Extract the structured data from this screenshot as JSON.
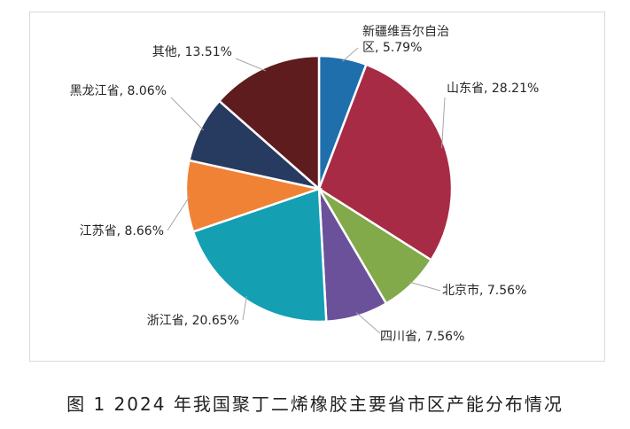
{
  "caption": "图 1  2024 年我国聚丁二烯橡胶主要省市区产能分布情况",
  "chart_data": {
    "type": "pie",
    "title": "",
    "start_angle_deg": 0,
    "direction": "clockwise",
    "slices": [
      {
        "label": "新疆维吾尔自治区",
        "label_lines": [
          "新疆维吾尔自治",
          "区, 5.79%"
        ],
        "value": 5.79,
        "color": "#1f6fad"
      },
      {
        "label": "山东省",
        "label_lines": [
          "山东省, 28.21%"
        ],
        "value": 28.21,
        "color": "#a72b45"
      },
      {
        "label": "北京市",
        "label_lines": [
          "北京市, 7.56%"
        ],
        "value": 7.56,
        "color": "#82a94a"
      },
      {
        "label": "四川省",
        "label_lines": [
          "四川省, 7.56%"
        ],
        "value": 7.56,
        "color": "#6b519a"
      },
      {
        "label": "浙江省",
        "label_lines": [
          "浙江省, 20.65%"
        ],
        "value": 20.65,
        "color": "#149fb3"
      },
      {
        "label": "江苏省",
        "label_lines": [
          "江苏省, 8.66%"
        ],
        "value": 8.66,
        "color": "#f08236"
      },
      {
        "label": "黑龙江省",
        "label_lines": [
          "黑龙江省, 8.06%"
        ],
        "value": 8.06,
        "color": "#273a60"
      },
      {
        "label": "其他",
        "label_lines": [
          "其他, 13.51%"
        ],
        "value": 13.51,
        "color": "#5e1c1f"
      }
    ],
    "legend": "none",
    "data_labels": "outside with leader lines"
  }
}
